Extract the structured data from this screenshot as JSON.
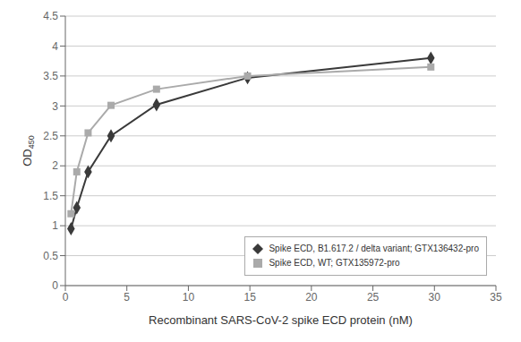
{
  "chart_data": {
    "type": "scatter",
    "title": "",
    "xlabel": "Recombinant SARS-CoV-2 spike ECD protein (nM)",
    "ylabel": "OD",
    "ylabel_subscript": "450",
    "xlim": [
      0,
      35
    ],
    "ylim": [
      0,
      4.5
    ],
    "xticks": [
      0,
      5,
      10,
      15,
      20,
      25,
      30,
      35
    ],
    "yticks": [
      0,
      0.5,
      1,
      1.5,
      2,
      2.5,
      3,
      3.5,
      4,
      4.5
    ],
    "grid": "y",
    "legend": "lower right",
    "series": [
      {
        "name": "Spike ECD, B1.617.2 / delta variant; GTX136432-pro",
        "x": [
          0.46,
          0.93,
          1.85,
          3.71,
          7.41,
          14.81,
          29.71
        ],
        "values": [
          0.95,
          1.3,
          1.9,
          2.5,
          3.02,
          3.47,
          3.8
        ],
        "color": "#3a3a3a",
        "marker": "diamond",
        "line_style": "solid"
      },
      {
        "name": "Spike ECD, WT; GTX135972-pro",
        "x": [
          0.46,
          0.93,
          1.85,
          3.71,
          7.41,
          14.81,
          29.71
        ],
        "values": [
          1.2,
          1.9,
          2.55,
          3.01,
          3.28,
          3.5,
          3.65
        ],
        "color": "#aaaaaa",
        "marker": "square",
        "line_style": "solid"
      }
    ]
  }
}
